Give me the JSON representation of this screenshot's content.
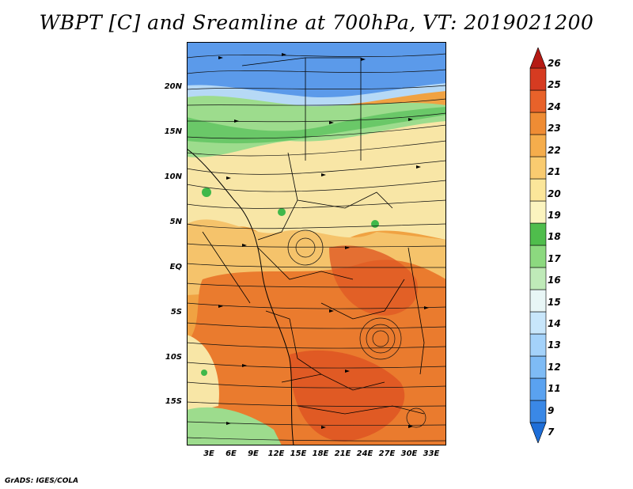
{
  "title": "WBPT [C] and Sreamline at 700hPa, VT: 2019021200",
  "credit": "GrADS: IGES/COLA",
  "axes": {
    "lat_labels": [
      "20N",
      "15N",
      "10N",
      "5N",
      "EQ",
      "5S",
      "10S",
      "15S"
    ],
    "lon_labels": [
      "3E",
      "6E",
      "9E",
      "12E",
      "15E",
      "18E",
      "21E",
      "24E",
      "27E",
      "30E",
      "33E"
    ]
  },
  "colorbar": {
    "labels": [
      "7",
      "9",
      "11",
      "12",
      "13",
      "14",
      "15",
      "16",
      "17",
      "18",
      "19",
      "20",
      "21",
      "22",
      "23",
      "24",
      "25",
      "26"
    ],
    "colors": [
      "#1e6ed8",
      "#3a88e6",
      "#5aa2f0",
      "#7ebbf5",
      "#a4d2fa",
      "#c8e6fb",
      "#e8f6f6",
      "#bfeab8",
      "#8cd97f",
      "#4fbd4c",
      "#fbf4bf",
      "#fbe69a",
      "#f9cb70",
      "#f5ad4c",
      "#ef8c34",
      "#e8622a",
      "#d63b21",
      "#b51a14"
    ]
  },
  "map_regions": {
    "colors": {
      "blue_dark": "#5b9aea",
      "blue_light": "#b6d9f6",
      "green_light": "#9ddc8d",
      "green_dark": "#3fb84a",
      "cream": "#f8e6a6",
      "light_orange": "#f5c36b",
      "orange": "#f0a242",
      "dark_orange": "#ea7b2e",
      "red_orange": "#e05a24"
    }
  }
}
